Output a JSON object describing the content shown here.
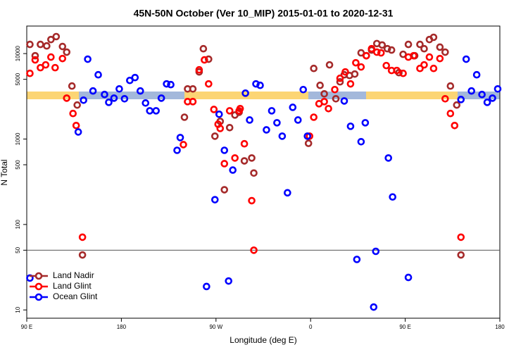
{
  "chart_data": {
    "type": "scatter",
    "title": "45N-50N October (Ver 10_MIP)   2015-01-01 to 2020-12-31",
    "x_label": "Longitude (deg E)",
    "y_label": "N Total",
    "xlim": [
      90,
      540
    ],
    "xticks": [
      {
        "value": 90,
        "label": "90 E"
      },
      180,
      {
        "value": 270,
        "label": "90 W"
      },
      {
        "value": 360,
        "label": "0"
      },
      {
        "value": 450,
        "label": "90 E"
      },
      {
        "value": 540,
        "label": "180"
      }
    ],
    "ylim": [
      8,
      21000
    ],
    "yticks": [
      10,
      50,
      100,
      500,
      1000,
      5000,
      10000
    ],
    "y_log": true,
    "hline": 50,
    "legend": "bottom-left",
    "series": [
      {
        "name": "Land Nadir",
        "color": "#a52a2a",
        "x": [
          93,
          98,
          103,
          109,
          113,
          118,
          124,
          128,
          133,
          138,
          143,
          240,
          243,
          248,
          254,
          258,
          263,
          269,
          274,
          278,
          283,
          288,
          292,
          297,
          304,
          306,
          358,
          363,
          369,
          373,
          378,
          384,
          388,
          392,
          397,
          402,
          408,
          413,
          418,
          423,
          428,
          433,
          437,
          444,
          448,
          453,
          459,
          464,
          468,
          473,
          477,
          483,
          488,
          493,
          499,
          503
        ],
        "values": [
          12800,
          9440,
          12800,
          12300,
          14600,
          15800,
          12100,
          10400,
          4170,
          2500,
          44,
          1800,
          3860,
          3860,
          6100,
          11400,
          8600,
          1080,
          1610,
          255,
          1360,
          1910,
          2060,
          555,
          600,
          400,
          890,
          6700,
          4250,
          3380,
          7380,
          2960,
          4670,
          5650,
          5540,
          5760,
          10200,
          9440,
          11000,
          13100,
          12600,
          11400,
          11000,
          5980,
          9810,
          12800,
          9440,
          12800,
          11400,
          14600,
          15500,
          11900,
          10400,
          4170,
          2500,
          44
        ]
      },
      {
        "name": "Land Glint",
        "color": "#ff0000",
        "x": [
          93,
          98,
          103,
          108,
          113,
          117,
          124,
          128,
          134,
          137,
          143,
          239,
          243,
          248,
          254,
          259,
          263,
          268,
          272,
          274,
          278,
          283,
          288,
          292,
          293,
          297,
          304,
          306,
          359,
          363,
          368,
          373,
          377,
          383,
          388,
          393,
          398,
          403,
          408,
          413,
          418,
          423,
          427,
          432,
          437,
          442,
          448,
          453,
          458,
          464,
          468,
          473,
          477,
          483,
          488,
          493,
          497,
          503
        ],
        "values": [
          5870,
          8430,
          6840,
          7380,
          9100,
          6840,
          8750,
          3010,
          1990,
          1440,
          71,
          860,
          2740,
          2740,
          6450,
          8430,
          4420,
          2220,
          1490,
          1330,
          515,
          2140,
          600,
          2140,
          2270,
          880,
          190,
          50,
          1080,
          1800,
          2590,
          2740,
          2270,
          3790,
          5140,
          6100,
          4420,
          7810,
          6970,
          9440,
          11400,
          10400,
          10200,
          7240,
          6340,
          6340,
          5870,
          9100,
          9440,
          6700,
          7380,
          9100,
          6700,
          8750,
          2960,
          1990,
          1440,
          71
        ]
      },
      {
        "name": "Ocean Glint",
        "color": "#0000ff",
        "x": [
          93,
          139,
          144,
          148,
          153,
          158,
          164,
          168,
          173,
          178,
          183,
          188,
          193,
          198,
          203,
          207,
          213,
          218,
          223,
          227,
          233,
          236,
          261,
          269,
          273,
          278,
          282,
          286,
          298,
          302,
          308,
          312,
          318,
          323,
          328,
          333,
          338,
          343,
          348,
          353,
          357,
          392,
          398,
          404,
          408,
          412,
          420,
          422,
          434,
          438,
          453,
          503,
          508,
          513,
          518,
          523,
          528,
          533,
          538
        ],
        "values": [
          23.6,
          1210,
          2850,
          8600,
          3650,
          5650,
          3320,
          2690,
          3010,
          3860,
          2960,
          4850,
          5240,
          3650,
          2640,
          2140,
          2140,
          3010,
          4420,
          4330,
          738,
          1040,
          18.8,
          195,
          1950,
          738,
          21.8,
          433,
          3440,
          1670,
          4420,
          4250,
          1280,
          2140,
          1550,
          1080,
          235,
          2350,
          1670,
          3790,
          1080,
          2790,
          1410,
          39,
          930,
          1550,
          10.8,
          48.5,
          600,
          210,
          24.0,
          2900,
          8600,
          3650,
          5650,
          3320,
          2690,
          3010,
          3860
        ]
      }
    ]
  }
}
